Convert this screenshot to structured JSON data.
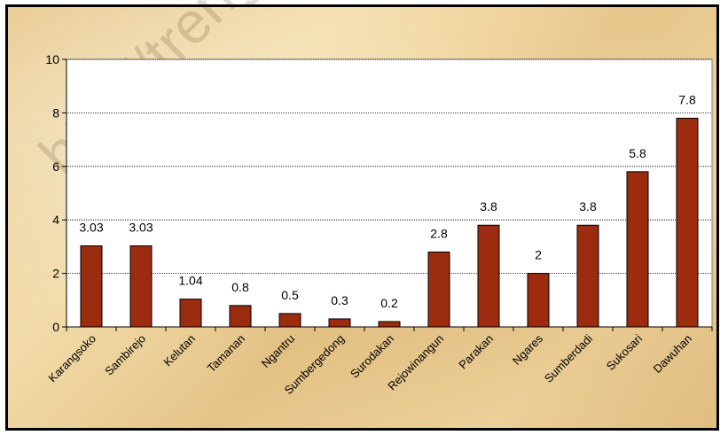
{
  "watermark": "http://trenggalek",
  "chart_data": {
    "type": "bar",
    "categories": [
      "Karangsoko",
      "Sambirejo",
      "Kelutan",
      "Tamanan",
      "Ngantru",
      "Sumbergedong",
      "Surodakan",
      "Rejowinangun",
      "Parakan",
      "Ngares",
      "Sumberdadi",
      "Sukosari",
      "Dawuhan"
    ],
    "values": [
      3.03,
      3.03,
      1.04,
      0.8,
      0.5,
      0.3,
      0.2,
      2.8,
      3.8,
      2,
      3.8,
      5.8,
      7.8
    ],
    "data_labels": [
      "3.03",
      "3.03",
      "1.04",
      "0.8",
      "0.5",
      "0.3",
      "0.2",
      "2.8",
      "3.8",
      "2",
      "3.8",
      "5.8",
      "7.8"
    ],
    "yticks": [
      "0",
      "2",
      "4",
      "6",
      "8",
      "10"
    ],
    "ylim": [
      0,
      10
    ],
    "grid": true,
    "bar_color": "#9b2c0f",
    "plot_background": "#ffffff"
  }
}
